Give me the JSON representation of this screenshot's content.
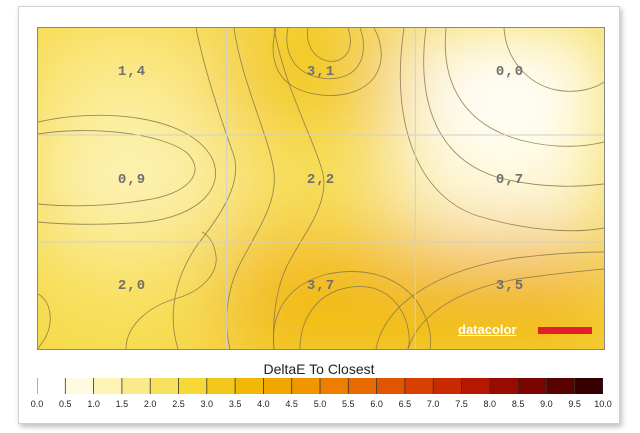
{
  "chart_data": {
    "type": "heatmap",
    "title": "DeltaE To Closest",
    "xlabel": "",
    "ylabel": "",
    "grid": true,
    "rows": 3,
    "cols": 3,
    "values": [
      [
        1.4,
        3.1,
        0.0
      ],
      [
        0.9,
        2.2,
        0.7
      ],
      [
        2.0,
        3.7,
        3.5
      ]
    ],
    "labels": [
      [
        "1,4",
        "3,1",
        "0,0"
      ],
      [
        "0,9",
        "2,2",
        "0,7"
      ],
      [
        "2,0",
        "3,7",
        "3,5"
      ]
    ],
    "colorbar": {
      "range": [
        0,
        10
      ],
      "step": 0.5,
      "tick_labels": [
        "0.0",
        "0.5",
        "1.0",
        "1.5",
        "2.0",
        "2.5",
        "3.0",
        "3.5",
        "4.0",
        "4.5",
        "5.0",
        "5.5",
        "6.0",
        "6.5",
        "7.0",
        "7.5",
        "8.0",
        "8.5",
        "9.0",
        "9.5",
        "10.0"
      ],
      "colors": [
        "#ffffff",
        "#fefbe0",
        "#fdf3b5",
        "#fbea8a",
        "#f8e15e",
        "#f6d838",
        "#f3c71a",
        "#f2b808",
        "#f0a800",
        "#ef9600",
        "#ec7f00",
        "#e86a00",
        "#e25500",
        "#d83f00",
        "#c92a00",
        "#b41800",
        "#990a00",
        "#7a0400",
        "#5a0200",
        "#340000"
      ]
    }
  },
  "watermark": {
    "brand": "datacolor"
  }
}
